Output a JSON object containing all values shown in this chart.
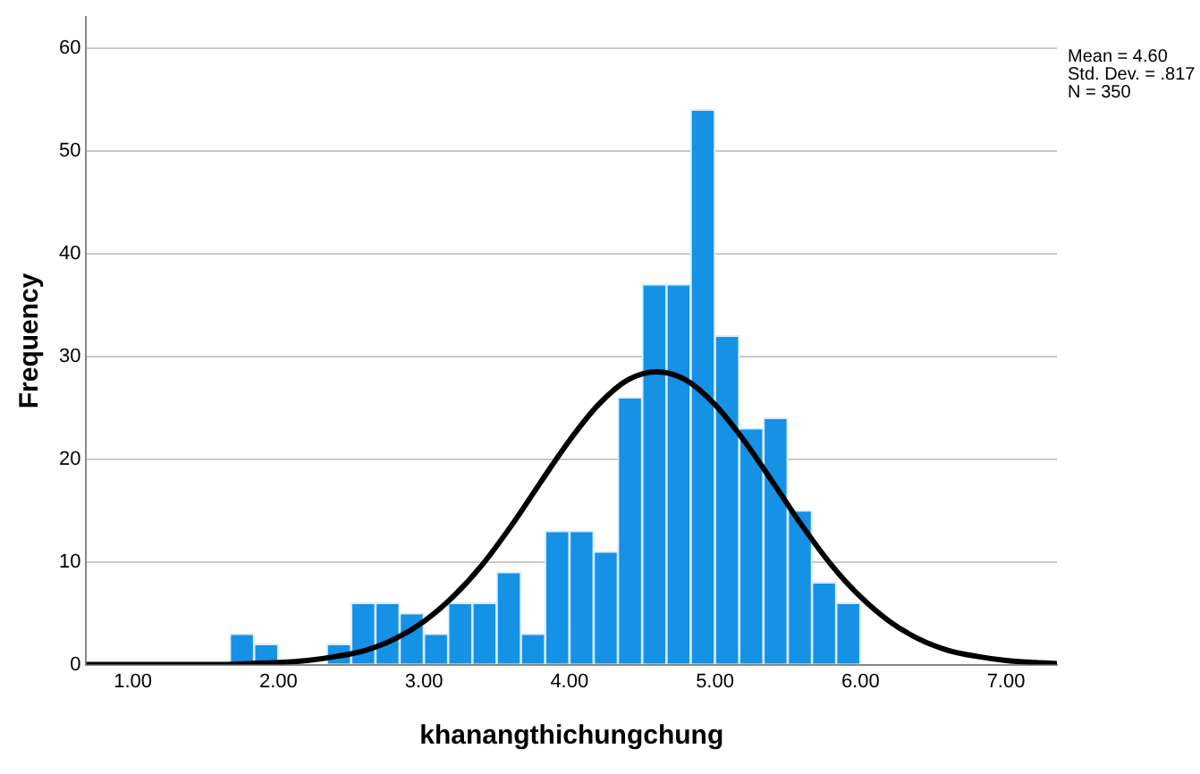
{
  "chart_data": {
    "type": "histogram",
    "xlabel": "khanangthichungchung",
    "ylabel": "Frequency",
    "annotations": [
      "Mean = 4.60",
      "Std. Dev. = .817",
      "N = 350"
    ],
    "series": [
      {
        "color": "#1591e6",
        "bins": [
          1.667,
          1.833,
          2.0,
          2.167,
          2.333,
          2.5,
          2.667,
          2.833,
          3.0,
          3.167,
          3.333,
          3.5,
          3.667,
          3.833,
          4.0,
          4.167,
          4.333,
          4.5,
          4.667,
          4.833,
          5.0,
          5.167,
          5.333,
          5.5,
          5.667,
          5.833,
          6.0
        ],
        "values": [
          3,
          2,
          0,
          0,
          2,
          6,
          6,
          5,
          3,
          6,
          6,
          9,
          3,
          13,
          13,
          11,
          26,
          37,
          37,
          54,
          32,
          23,
          24,
          15,
          8,
          6
        ]
      },
      {
        "type": "line",
        "color": "#000000",
        "x": [
          0.68,
          1.0,
          1.4,
          1.6,
          1.8,
          2.0,
          2.2,
          2.4,
          2.6,
          2.8,
          3.0,
          3.2,
          3.4,
          3.6,
          3.8,
          4.0,
          4.2,
          4.4,
          4.6,
          4.8,
          5.0,
          5.2,
          5.4,
          5.6,
          5.8,
          6.0,
          6.2,
          6.4,
          6.6,
          6.8,
          7.0,
          7.2,
          7.35
        ],
        "values": [
          0,
          0,
          0,
          0,
          0.1,
          0.2,
          0.4,
          0.8,
          1.4,
          2.5,
          4.2,
          6.6,
          9.7,
          13.5,
          17.7,
          21.8,
          25.3,
          27.7,
          28.5,
          27.7,
          25.3,
          21.8,
          17.7,
          13.5,
          9.7,
          6.6,
          4.2,
          2.5,
          1.4,
          0.8,
          0.4,
          0.2,
          0.1
        ]
      }
    ],
    "xlim": [
      0.68,
      7.35
    ],
    "xticks": [
      {
        "value": 1,
        "label": "1.00"
      },
      {
        "value": 2,
        "label": "2.00"
      },
      {
        "value": 3,
        "label": "3.00"
      },
      {
        "value": 4,
        "label": "4.00"
      },
      {
        "value": 5,
        "label": "5.00"
      },
      {
        "value": 6,
        "label": "6.00"
      },
      {
        "value": 7,
        "label": "7.00"
      }
    ],
    "ylim": [
      0,
      63
    ],
    "yticks": [
      0,
      10,
      20,
      30,
      40,
      50,
      60
    ],
    "grid": "y",
    "legend": false,
    "marker": "none",
    "line_style": "solid"
  }
}
